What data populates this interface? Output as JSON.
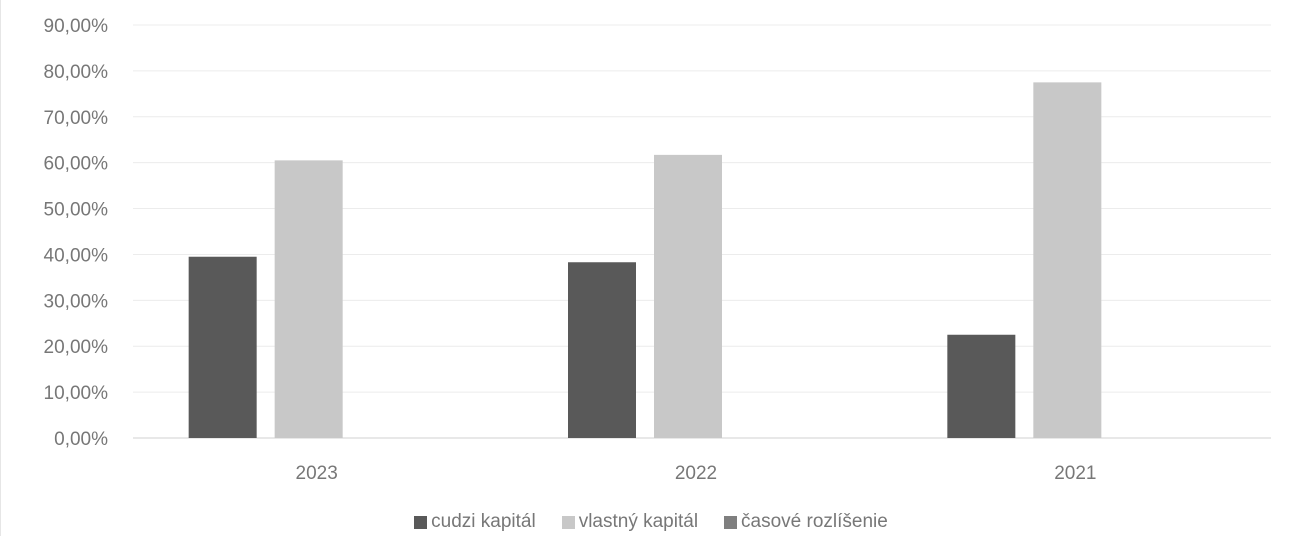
{
  "chart_data": {
    "type": "bar",
    "categories": [
      "2023",
      "2022",
      "2021"
    ],
    "series": [
      {
        "name": "cudzi kapitál",
        "values": [
          39.5,
          38.3,
          22.5
        ],
        "color": "#595959"
      },
      {
        "name": "vlastný kapitál",
        "values": [
          60.5,
          61.7,
          77.5
        ],
        "color": "#c8c8c8"
      },
      {
        "name": "časové rozlíšenie",
        "values": [
          0,
          0,
          0
        ],
        "color": "#7f7f7f"
      }
    ],
    "ylim": [
      0,
      90
    ],
    "yticks": [
      "0,00%",
      "10,00%",
      "20,00%",
      "30,00%",
      "40,00%",
      "50,00%",
      "60,00%",
      "70,00%",
      "80,00%",
      "90,00%"
    ],
    "grid": true,
    "legend_position": "bottom"
  }
}
